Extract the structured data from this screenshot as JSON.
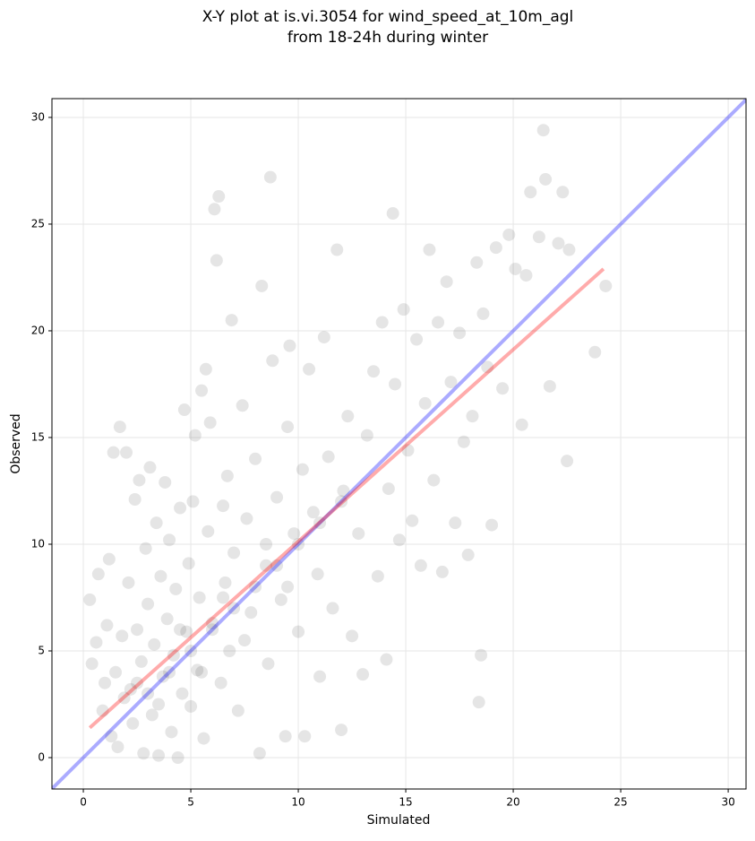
{
  "chart_data": {
    "type": "scatter",
    "title": [
      "X-Y plot at is.vi.3054 for wind_speed_at_10m_agl",
      "from 18-24h during winter"
    ],
    "xlabel": "Simulated",
    "ylabel": "Observed",
    "xlim": [
      -1.46,
      30.83
    ],
    "ylim": [
      -1.47,
      30.88
    ],
    "xticks": [
      0,
      5,
      10,
      15,
      20,
      25,
      30
    ],
    "yticks": [
      0,
      5,
      10,
      15,
      20,
      25,
      30
    ],
    "grid": true,
    "series": [
      {
        "type": "scatter",
        "color": "#000000",
        "alpha": 0.1,
        "x": [
          0.3,
          0.4,
          0.6,
          0.7,
          0.9,
          1.0,
          1.1,
          1.2,
          1.3,
          1.4,
          1.5,
          1.6,
          1.7,
          1.8,
          1.9,
          2.0,
          2.1,
          2.2,
          2.3,
          2.4,
          2.5,
          2.6,
          2.7,
          2.8,
          2.9,
          3.0,
          3.1,
          3.2,
          3.3,
          3.4,
          3.5,
          3.6,
          3.7,
          3.8,
          3.9,
          4.0,
          4.1,
          4.2,
          4.3,
          4.4,
          4.5,
          4.6,
          4.7,
          4.8,
          4.9,
          5.0,
          5.1,
          5.2,
          5.3,
          5.4,
          5.5,
          5.6,
          5.7,
          5.8,
          5.9,
          6.0,
          6.1,
          6.2,
          6.3,
          6.4,
          6.5,
          6.6,
          6.7,
          6.8,
          6.9,
          7.0,
          7.2,
          7.4,
          7.6,
          7.8,
          8.0,
          8.2,
          8.3,
          8.5,
          8.6,
          8.7,
          8.8,
          9.0,
          9.2,
          9.4,
          9.5,
          9.6,
          9.8,
          10.0,
          10.2,
          10.3,
          10.5,
          10.7,
          10.9,
          11.0,
          11.2,
          11.4,
          11.6,
          11.8,
          12.0,
          12.1,
          12.3,
          12.5,
          12.8,
          13.0,
          13.2,
          13.5,
          13.7,
          13.9,
          14.1,
          14.2,
          14.4,
          14.5,
          14.7,
          14.9,
          15.1,
          15.3,
          15.5,
          15.7,
          15.9,
          16.1,
          16.3,
          16.5,
          16.7,
          16.9,
          17.1,
          17.3,
          17.5,
          17.7,
          17.9,
          18.1,
          18.3,
          18.4,
          18.5,
          18.6,
          18.8,
          19.0,
          19.2,
          19.5,
          19.8,
          20.1,
          20.4,
          20.6,
          20.8,
          21.2,
          21.4,
          21.5,
          21.7,
          22.1,
          22.3,
          22.5,
          22.6,
          23.8,
          24.3,
          3,
          4,
          5,
          6,
          7,
          8,
          9,
          10,
          11,
          12,
          4.5,
          5.5,
          6.5,
          7.5,
          8.5,
          9.5,
          3.5,
          2.5
        ],
        "values": [
          7.4,
          4.4,
          5.4,
          8.6,
          2.2,
          3.5,
          6.2,
          9.3,
          1.0,
          14.3,
          4.0,
          0.5,
          15.5,
          5.7,
          2.8,
          14.3,
          8.2,
          3.2,
          1.6,
          12.1,
          6.0,
          13.0,
          4.5,
          0.2,
          9.8,
          7.2,
          13.6,
          2.0,
          5.3,
          11.0,
          0.1,
          8.5,
          3.8,
          12.9,
          6.5,
          10.2,
          1.2,
          4.8,
          7.9,
          0.0,
          11.7,
          3.0,
          16.3,
          5.9,
          9.1,
          2.4,
          12.0,
          15.1,
          4.1,
          7.5,
          17.2,
          0.9,
          18.2,
          10.6,
          15.7,
          6.3,
          25.7,
          23.3,
          26.3,
          3.5,
          11.8,
          8.2,
          13.2,
          5.0,
          20.5,
          9.6,
          2.2,
          16.5,
          11.2,
          6.8,
          14.0,
          0.2,
          22.1,
          9.0,
          4.4,
          27.2,
          18.6,
          12.2,
          7.4,
          1.0,
          15.5,
          19.3,
          10.5,
          5.9,
          13.5,
          1.0,
          18.2,
          11.5,
          8.6,
          3.8,
          19.7,
          14.1,
          7.0,
          23.8,
          1.3,
          12.5,
          16.0,
          5.7,
          10.5,
          3.9,
          15.1,
          18.1,
          8.5,
          20.4,
          4.6,
          12.6,
          25.5,
          17.5,
          10.2,
          21.0,
          14.4,
          11.1,
          19.6,
          9.0,
          16.6,
          23.8,
          13.0,
          20.4,
          8.7,
          22.3,
          17.6,
          11.0,
          19.9,
          14.8,
          9.5,
          16.0,
          23.2,
          2.6,
          4.8,
          20.8,
          18.3,
          10.9,
          23.9,
          17.3,
          24.5,
          22.9,
          15.6,
          22.6,
          26.5,
          24.4,
          29.4,
          27.1,
          17.4,
          24.1,
          26.5,
          13.9,
          23.8,
          19.0,
          22.1,
          3,
          4,
          5,
          6,
          7,
          8,
          9,
          10,
          11,
          12,
          6,
          4,
          7.5,
          5.5,
          10,
          8,
          2.5,
          3.5
        ]
      },
      {
        "type": "line",
        "color": "#0000ff",
        "alpha": 0.33,
        "x": [
          -1.46,
          30.83
        ],
        "values": [
          -1.46,
          30.83
        ]
      },
      {
        "type": "line",
        "color": "#ff0000",
        "alpha": 0.33,
        "x": [
          0.3,
          24.2
        ],
        "values": [
          1.4,
          22.9
        ]
      }
    ]
  }
}
